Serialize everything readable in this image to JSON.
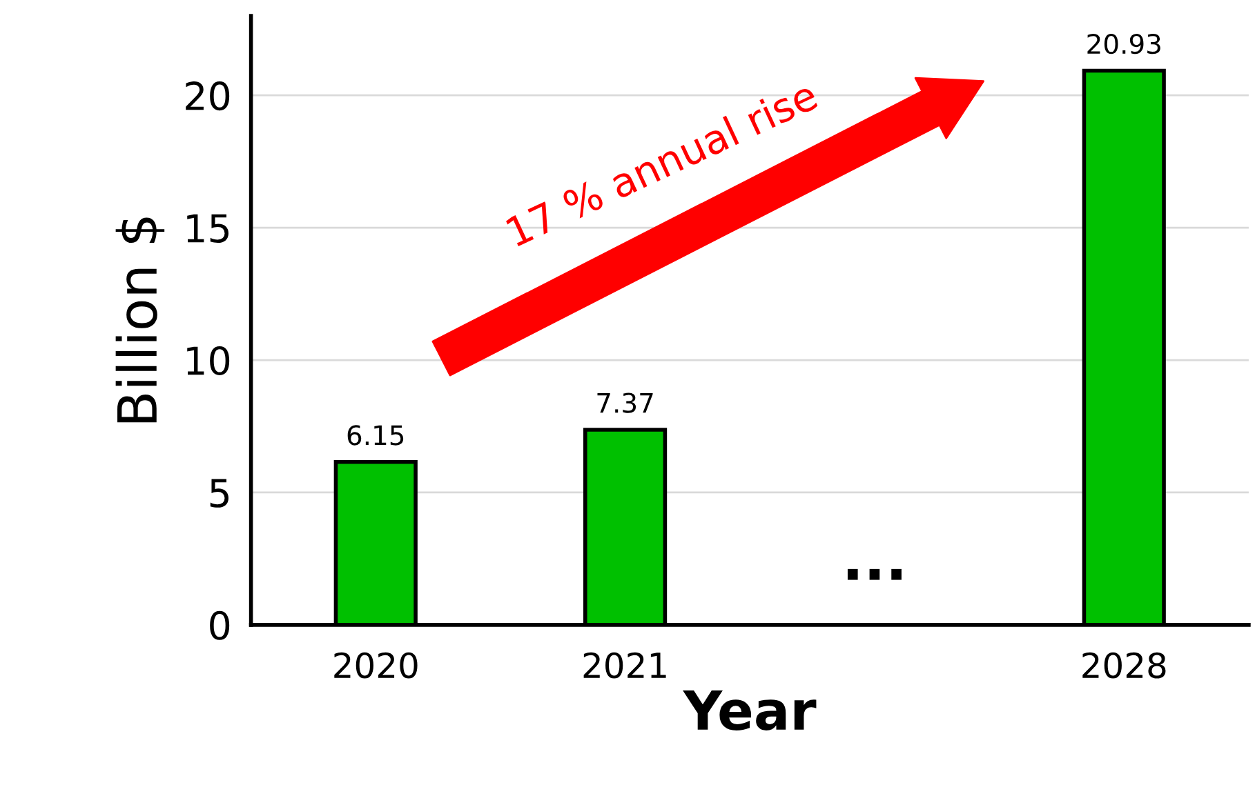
{
  "chart_data": {
    "type": "bar",
    "xlabel": "Year",
    "ylabel": "Billion $",
    "categories": [
      "2020",
      "2021",
      null,
      "2028"
    ],
    "values": [
      6.15,
      7.37,
      null,
      20.93
    ],
    "color": "#00c000",
    "ylim": [
      0,
      23
    ],
    "yticks": [
      0,
      5,
      10,
      15,
      20
    ],
    "grid": "y",
    "data_labels": true,
    "legend": false,
    "annotations": [
      "17 % annual rise",
      "..."
    ]
  }
}
